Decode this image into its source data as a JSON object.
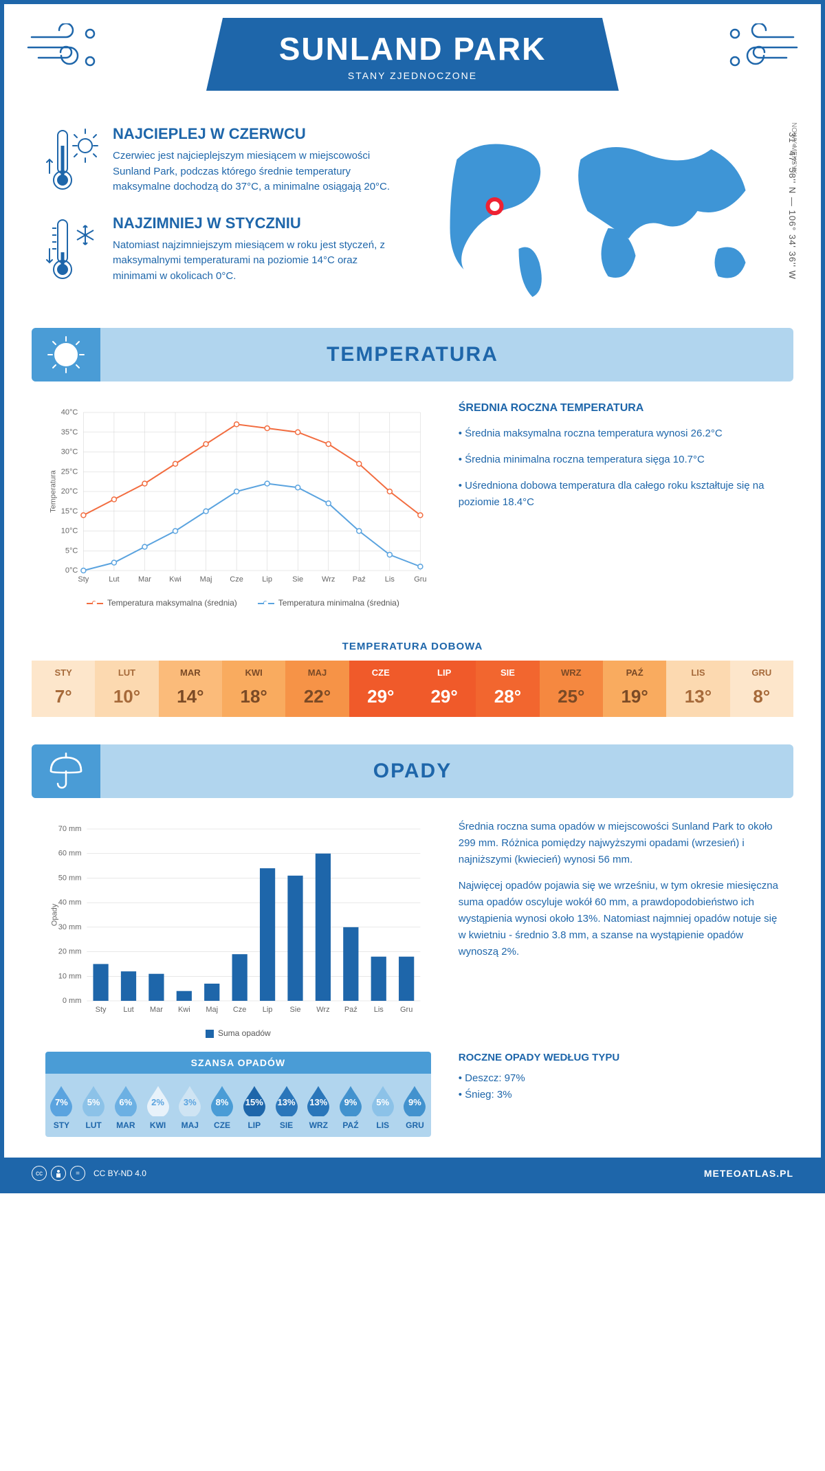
{
  "header": {
    "title": "SUNLAND PARK",
    "subtitle": "STANY ZJEDNOCZONE"
  },
  "intro": {
    "hot": {
      "title": "NAJCIEPLEJ W CZERWCU",
      "text": "Czerwiec jest najcieplejszym miesiącem w miejscowości Sunland Park, podczas którego średnie temperatury maksymalne dochodzą do 37°C, a minimalne osiągają 20°C."
    },
    "cold": {
      "title": "NAJZIMNIEJ W STYCZNIU",
      "text": "Natomiast najzimniejszym miesiącem w roku jest styczeń, z maksymalnymi temperaturami na poziomie 14°C oraz minimami w okolicach 0°C."
    },
    "state": "NOWY MEKSYK",
    "coords": "31° 47' 58'' N — 106° 34' 36'' W"
  },
  "temp_section": {
    "title": "TEMPERATURA",
    "chart": {
      "type": "line",
      "months": [
        "Sty",
        "Lut",
        "Mar",
        "Kwi",
        "Maj",
        "Cze",
        "Lip",
        "Sie",
        "Wrz",
        "Paź",
        "Lis",
        "Gru"
      ],
      "max_series": [
        14,
        18,
        22,
        27,
        32,
        37,
        36,
        35,
        32,
        27,
        20,
        14
      ],
      "min_series": [
        0,
        2,
        6,
        10,
        15,
        20,
        22,
        21,
        17,
        10,
        4,
        1
      ],
      "max_color": "#f26c3f",
      "min_color": "#5aa3df",
      "y_label": "Temperatura",
      "y_min": 0,
      "y_max": 40,
      "y_step": 5,
      "grid_color": "#d0d0d0",
      "bg": "#ffffff",
      "legend_max": "Temperatura maksymalna (średnia)",
      "legend_min": "Temperatura minimalna (średnia)"
    },
    "info": {
      "heading": "ŚREDNIA ROCZNA TEMPERATURA",
      "bullets": [
        "Średnia maksymalna roczna temperatura wynosi 26.2°C",
        "Średnia minimalna roczna temperatura sięga 10.7°C",
        "Uśredniona dobowa temperatura dla całego roku kształtuje się na poziomie 18.4°C"
      ]
    },
    "daily": {
      "heading": "TEMPERATURA DOBOWA",
      "months": [
        "STY",
        "LUT",
        "MAR",
        "KWI",
        "MAJ",
        "CZE",
        "LIP",
        "SIE",
        "WRZ",
        "PAŹ",
        "LIS",
        "GRU"
      ],
      "values": [
        "7°",
        "10°",
        "14°",
        "18°",
        "22°",
        "29°",
        "29°",
        "28°",
        "25°",
        "19°",
        "13°",
        "8°"
      ],
      "cell_bg": [
        "#fde6cb",
        "#fcd9b0",
        "#fbbb7a",
        "#f9ab5f",
        "#f69347",
        "#f05a2a",
        "#f05a2a",
        "#f2662f",
        "#f58840",
        "#f9ab5f",
        "#fcd9b0",
        "#fde6cb"
      ],
      "cell_fg": [
        "#a66a3a",
        "#a66a3a",
        "#7a4a26",
        "#7a4a26",
        "#7a4a26",
        "#ffffff",
        "#ffffff",
        "#ffffff",
        "#7a4a26",
        "#7a4a26",
        "#a66a3a",
        "#a66a3a"
      ]
    }
  },
  "precip_section": {
    "title": "OPADY",
    "chart": {
      "type": "bar",
      "months": [
        "Sty",
        "Lut",
        "Mar",
        "Kwi",
        "Maj",
        "Cze",
        "Lip",
        "Sie",
        "Wrz",
        "Paź",
        "Lis",
        "Gru"
      ],
      "values": [
        15,
        12,
        11,
        4,
        7,
        19,
        54,
        51,
        60,
        30,
        18,
        18
      ],
      "bar_color": "#1e66aa",
      "y_label": "Opady",
      "y_min": 0,
      "y_max": 70,
      "y_step": 10,
      "unit": "mm",
      "grid_color": "#d0d0d0",
      "legend": "Suma opadów"
    },
    "info": {
      "p1": "Średnia roczna suma opadów w miejscowości Sunland Park to około 299 mm. Różnica pomiędzy najwyższymi opadami (wrzesień) i najniższymi (kwiecień) wynosi 56 mm.",
      "p2": "Najwięcej opadów pojawia się we wrześniu, w tym okresie miesięczna suma opadów oscyluje wokół 60 mm, a prawdopodobieństwo ich wystąpienia wynosi około 13%. Natomiast najmniej opadów notuje się w kwietniu - średnio 3.8 mm, a szanse na wystąpienie opadów wynoszą 2%."
    },
    "chance": {
      "heading": "SZANSA OPADÓW",
      "months": [
        "STY",
        "LUT",
        "MAR",
        "KWI",
        "MAJ",
        "CZE",
        "LIP",
        "SIE",
        "WRZ",
        "PAŹ",
        "LIS",
        "GRU"
      ],
      "pct": [
        "7%",
        "5%",
        "6%",
        "2%",
        "3%",
        "8%",
        "15%",
        "13%",
        "13%",
        "9%",
        "5%",
        "9%"
      ],
      "drop_fill": [
        "#5aa3df",
        "#8cc2e8",
        "#6cb0e3",
        "#e8f2fa",
        "#cfe4f3",
        "#4a9cd6",
        "#1e66aa",
        "#2a76ba",
        "#2a76ba",
        "#4292ce",
        "#8cc2e8",
        "#4292ce"
      ],
      "drop_text_color": [
        "#fff",
        "#fff",
        "#fff",
        "#5aa3df",
        "#5aa3df",
        "#fff",
        "#fff",
        "#fff",
        "#fff",
        "#fff",
        "#fff",
        "#fff"
      ]
    },
    "type": {
      "heading": "ROCZNE OPADY WEDŁUG TYPU",
      "rain": "Deszcz: 97%",
      "snow": "Śnieg: 3%"
    }
  },
  "footer": {
    "license": "CC BY-ND 4.0",
    "brand": "METEOATLAS.PL"
  },
  "colors": {
    "primary": "#1e66aa",
    "light": "#b1d5ee",
    "mid": "#4a9cd6"
  }
}
